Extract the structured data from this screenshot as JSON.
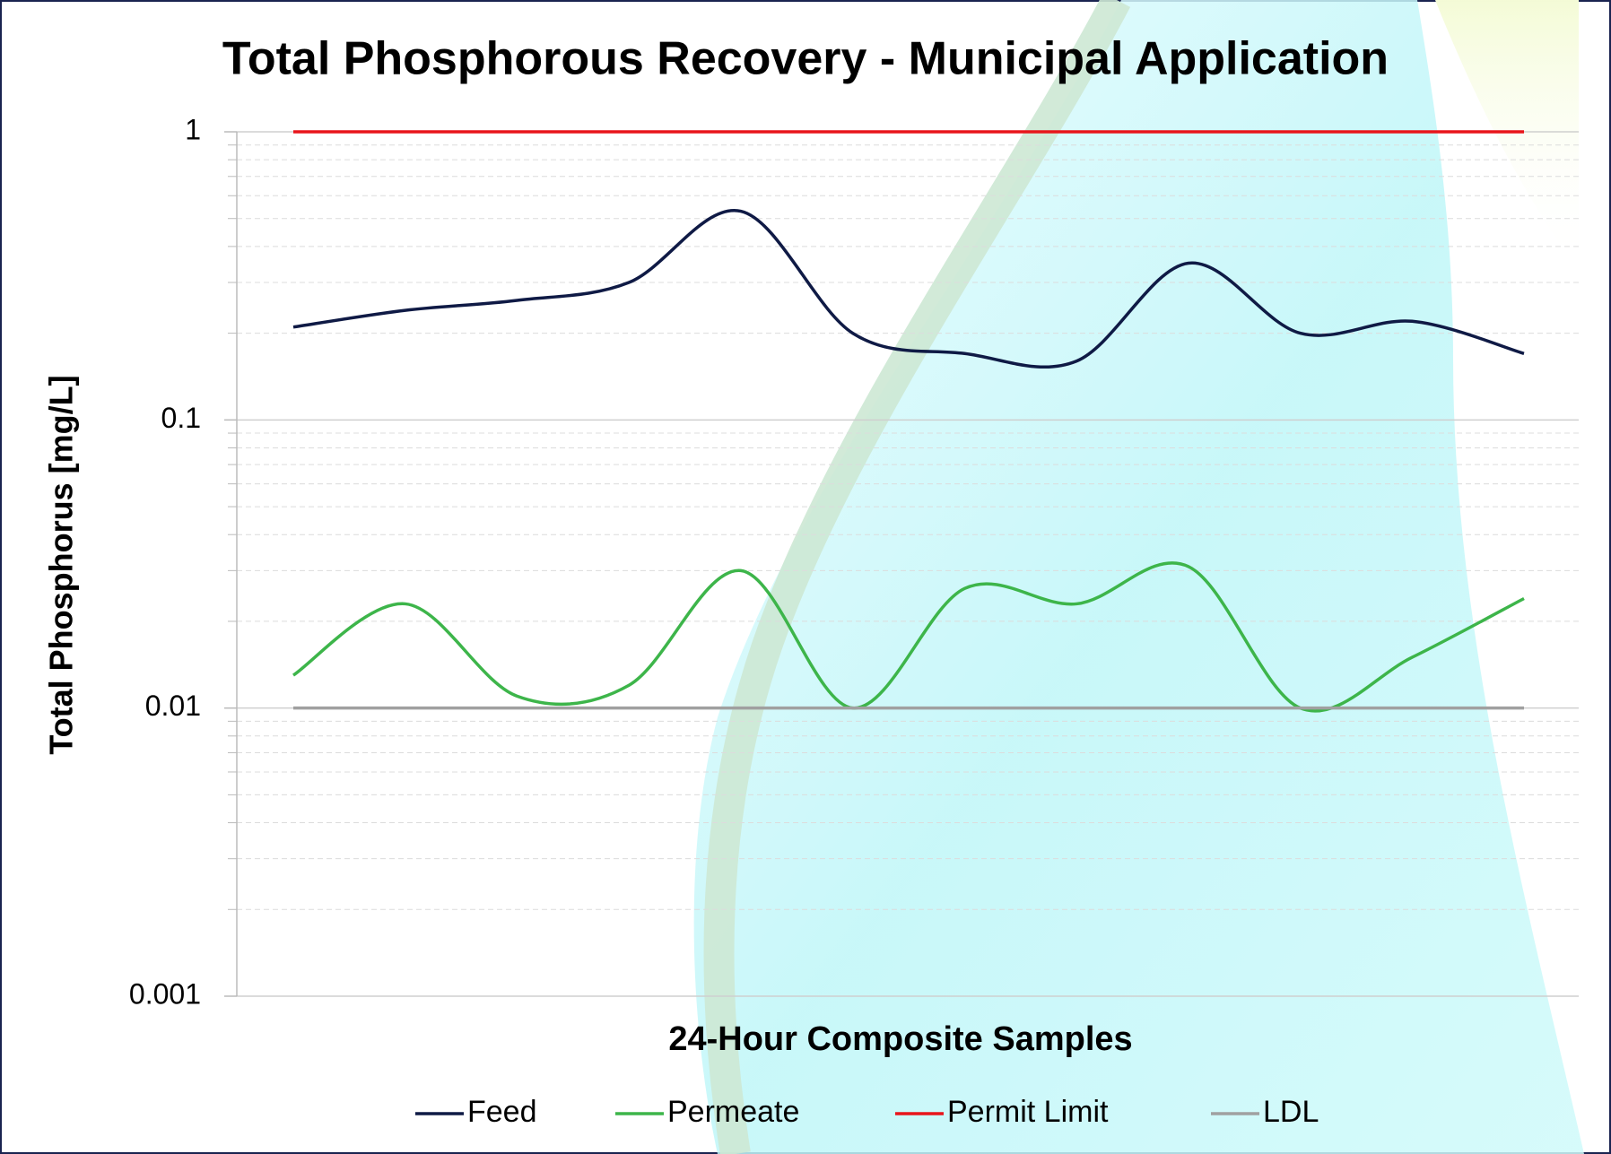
{
  "chart_data": {
    "type": "line",
    "title": "Total Phosphorous Recovery - Municipal Application",
    "x_label": "24-Hour Composite Samples",
    "y_label": "Total Phosphorus [mg/L]",
    "categories": [
      null,
      null,
      null,
      null,
      null,
      null,
      null,
      null,
      null,
      null,
      null,
      null
    ],
    "log_scale": true,
    "smooth": true,
    "grid": true,
    "legend": "bottom",
    "ylim": [
      0.001,
      1
    ],
    "yticks": [
      0.001,
      0.01,
      0.1,
      1
    ],
    "series": [
      {
        "name": "Feed",
        "color": "#0f1a45",
        "values": [
          0.21,
          0.24,
          0.26,
          0.3,
          0.53,
          0.2,
          0.17,
          0.16,
          0.35,
          0.2,
          0.22,
          0.17
        ]
      },
      {
        "name": "Permeate",
        "color": "#3db54a",
        "values": [
          0.013,
          0.023,
          0.011,
          0.012,
          0.03,
          0.01,
          0.026,
          0.023,
          0.031,
          0.01,
          0.015,
          0.024
        ]
      },
      {
        "name": "Permit Limit",
        "color": "#e8151b",
        "values": [
          1,
          1,
          1,
          1,
          1,
          1,
          1,
          1,
          1,
          1,
          1,
          1
        ]
      },
      {
        "name": "LDL",
        "color": "#a0a0a0",
        "values": [
          0.01,
          0.01,
          0.01,
          0.01,
          0.01,
          0.01,
          0.01,
          0.01,
          0.01,
          0.01,
          0.01,
          0.01
        ]
      }
    ]
  }
}
